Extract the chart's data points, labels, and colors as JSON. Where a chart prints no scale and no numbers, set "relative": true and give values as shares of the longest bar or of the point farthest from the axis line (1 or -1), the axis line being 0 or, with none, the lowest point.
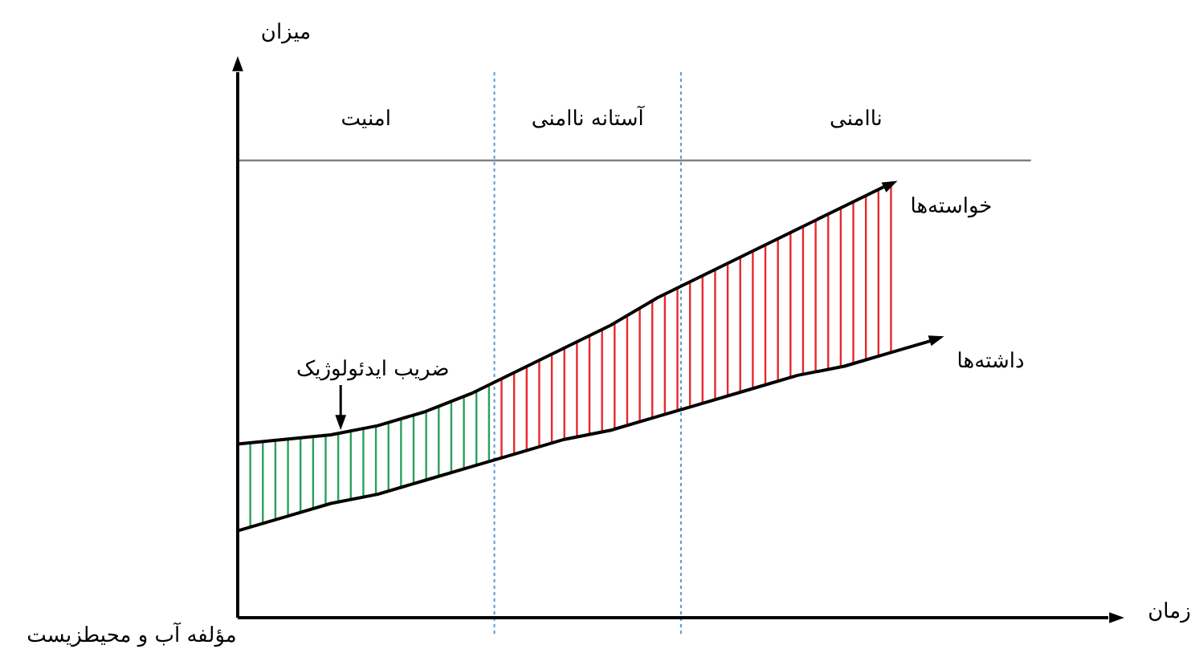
{
  "chart_data": {
    "type": "line",
    "relative": true,
    "marker": "none",
    "line_style": "solid",
    "xlabel": "زمان",
    "categories": [
      null,
      null,
      null,
      null,
      null,
      null,
      null,
      null,
      null,
      null,
      null,
      null,
      null,
      null,
      null,
      null,
      null,
      null,
      null,
      null
    ],
    "series": [
      {
        "name": "خواسته‌ها",
        "color": "#000000",
        "values": [
          0.38,
          0.39,
          0.4,
          0.42,
          0.45,
          0.49,
          0.54,
          0.59,
          0.64,
          0.7,
          0.75,
          0.8,
          0.85,
          0.9,
          0.95,
          null,
          null,
          null,
          null,
          null
        ]
      },
      {
        "name": "داشته‌ها",
        "color": "#000000",
        "values": [
          0.19,
          0.22,
          0.25,
          0.27,
          0.3,
          0.33,
          0.36,
          0.39,
          0.41,
          0.44,
          0.47,
          0.5,
          0.53,
          0.55,
          0.58,
          0.61,
          null,
          null,
          null,
          null
        ]
      },
      {
        "color": "#808080",
        "values": [
          1.0,
          1.0,
          1.0,
          1.0,
          1.0,
          1.0,
          1.0,
          1.0,
          1.0,
          1.0,
          1.0,
          1.0,
          1.0,
          1.0,
          1.0,
          1.0,
          1.0,
          1.0,
          null,
          null
        ]
      }
    ],
    "annotations": [
      {
        "text": "ضریب ایدئولوژیک",
        "y": 0.4
      },
      "میزان",
      "امنیت",
      "آستانه ناامنی",
      "ناامنی",
      "مؤلفه آب و محیطزیست"
    ]
  }
}
